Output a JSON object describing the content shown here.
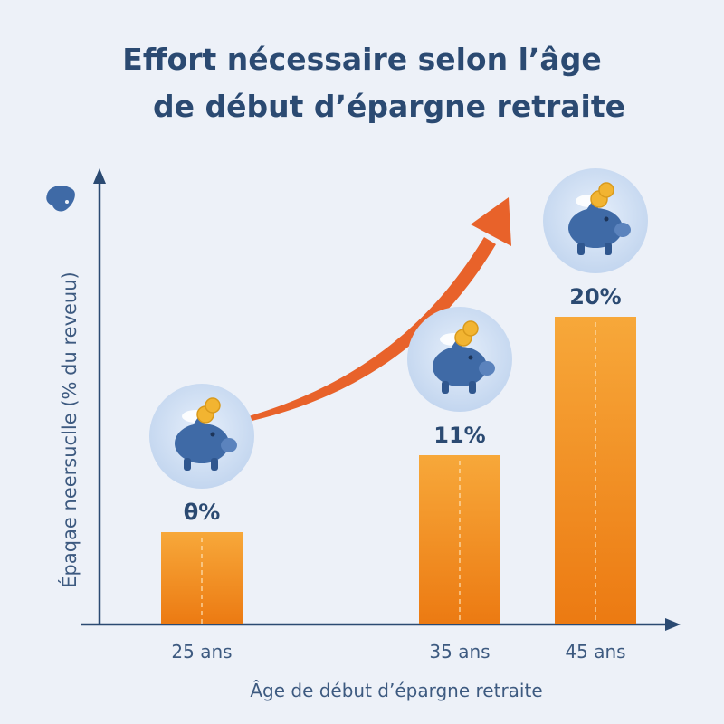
{
  "chart_data": {
    "type": "bar",
    "title_lines": [
      "Effort nécessaire selon l’âge",
      "de début d’épargne retraite"
    ],
    "xlabel": "Âge de début d’épargne retraite",
    "ylabel": "Épaqae neersuclle (% du reveuu)",
    "categories": [
      "25 ans",
      "35 ans",
      "45 ans"
    ],
    "values": [
      6,
      11,
      20
    ],
    "data_labels": [
      "θ%",
      "11%",
      "20%"
    ],
    "ylim": [
      0,
      20
    ],
    "grid": false,
    "legend": "none",
    "colors": {
      "bar_top": "#f7a83a",
      "bar_bottom": "#ec7a12",
      "arrow": "#e8622a",
      "axis": "#2b4a72",
      "label": "#2b4a72",
      "piggy": "#3f6aa6",
      "coin": "#f2b431"
    },
    "icons": [
      "piggy-bank-icon",
      "trend-arrow-icon",
      "piggy-bank-icon-small"
    ]
  }
}
